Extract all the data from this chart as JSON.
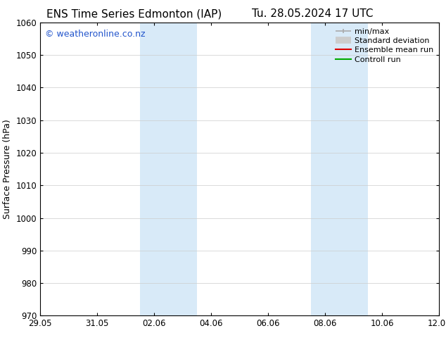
{
  "title_left": "ENS Time Series Edmonton (IAP)",
  "title_right": "Tu. 28.05.2024 17 UTC",
  "ylabel": "Surface Pressure (hPa)",
  "ylim": [
    970,
    1060
  ],
  "yticks": [
    970,
    980,
    990,
    1000,
    1010,
    1020,
    1030,
    1040,
    1050,
    1060
  ],
  "xtick_labels": [
    "29.05",
    "31.05",
    "02.06",
    "04.06",
    "06.06",
    "08.06",
    "10.06",
    "12.06"
  ],
  "xtick_positions": [
    0,
    2,
    4,
    6,
    8,
    10,
    12,
    14
  ],
  "xlim": [
    0,
    14
  ],
  "shaded_bands": [
    {
      "x_start": 3.5,
      "x_end": 5.5
    },
    {
      "x_start": 9.5,
      "x_end": 11.5
    }
  ],
  "shaded_color": "#d8eaf8",
  "watermark_text": "© weatheronline.co.nz",
  "watermark_color": "#2255cc",
  "watermark_fontsize": 9,
  "legend_items": [
    {
      "label": "min/max",
      "color": "#aaaaaa",
      "lw": 1.2,
      "style": "minmax"
    },
    {
      "label": "Standard deviation",
      "color": "#cccccc",
      "lw": 7,
      "style": "thick"
    },
    {
      "label": "Ensemble mean run",
      "color": "#dd0000",
      "lw": 1.5,
      "style": "line"
    },
    {
      "label": "Controll run",
      "color": "#00aa00",
      "lw": 1.5,
      "style": "line"
    }
  ],
  "bg_color": "#ffffff",
  "plot_bg_color": "#ffffff",
  "title_fontsize": 11,
  "title_font": "DejaVu Sans",
  "axis_label_fontsize": 9,
  "tick_fontsize": 8.5,
  "legend_fontsize": 8,
  "grid_color": "#cccccc",
  "spine_color": "#000000"
}
